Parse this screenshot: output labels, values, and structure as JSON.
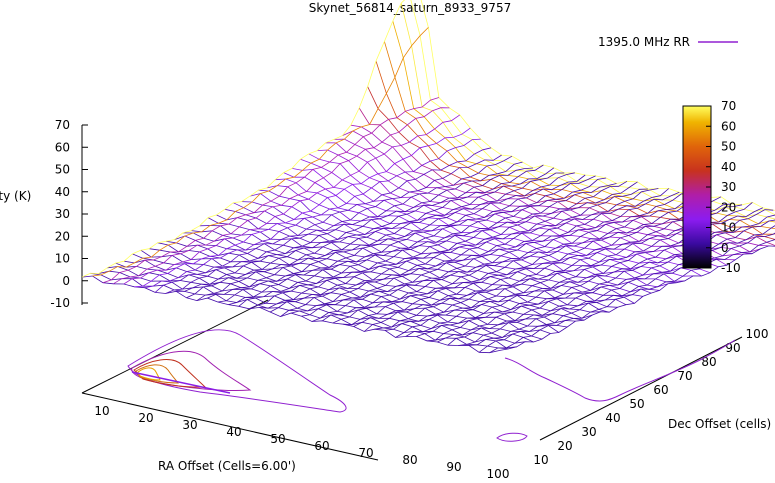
{
  "chart_data": {
    "type": "surface",
    "title": "Skynet_56814_saturn_8933_9757",
    "legend": {
      "entry": "1395.0 MHz RR",
      "position": "top-right"
    },
    "xlabel": "RA Offset (Cells=6.00')",
    "ylabel": "Dec Offset (cells)",
    "zlabel": "Intensity (K)",
    "x_ticks": [
      "10",
      "20",
      "30",
      "40",
      "50",
      "60",
      "70",
      "80",
      "90",
      "100"
    ],
    "y_ticks": [
      "10",
      "20",
      "30",
      "40",
      "50",
      "60",
      "70",
      "80",
      "90",
      "100"
    ],
    "z_ticks": [
      "-10",
      "0",
      "10",
      "20",
      "30",
      "40",
      "50",
      "60",
      "70"
    ],
    "zlim": [
      -10,
      70
    ],
    "colorbar": {
      "ticks": [
        "-10",
        "0",
        "10",
        "20",
        "30",
        "40",
        "50",
        "60",
        "70"
      ],
      "range": [
        -10,
        70
      ]
    },
    "surface": {
      "peak_intensity": 70,
      "peak_location": {
        "ra": 10,
        "dec": 90
      },
      "background_intensity": 2
    },
    "projected_contours": true
  }
}
